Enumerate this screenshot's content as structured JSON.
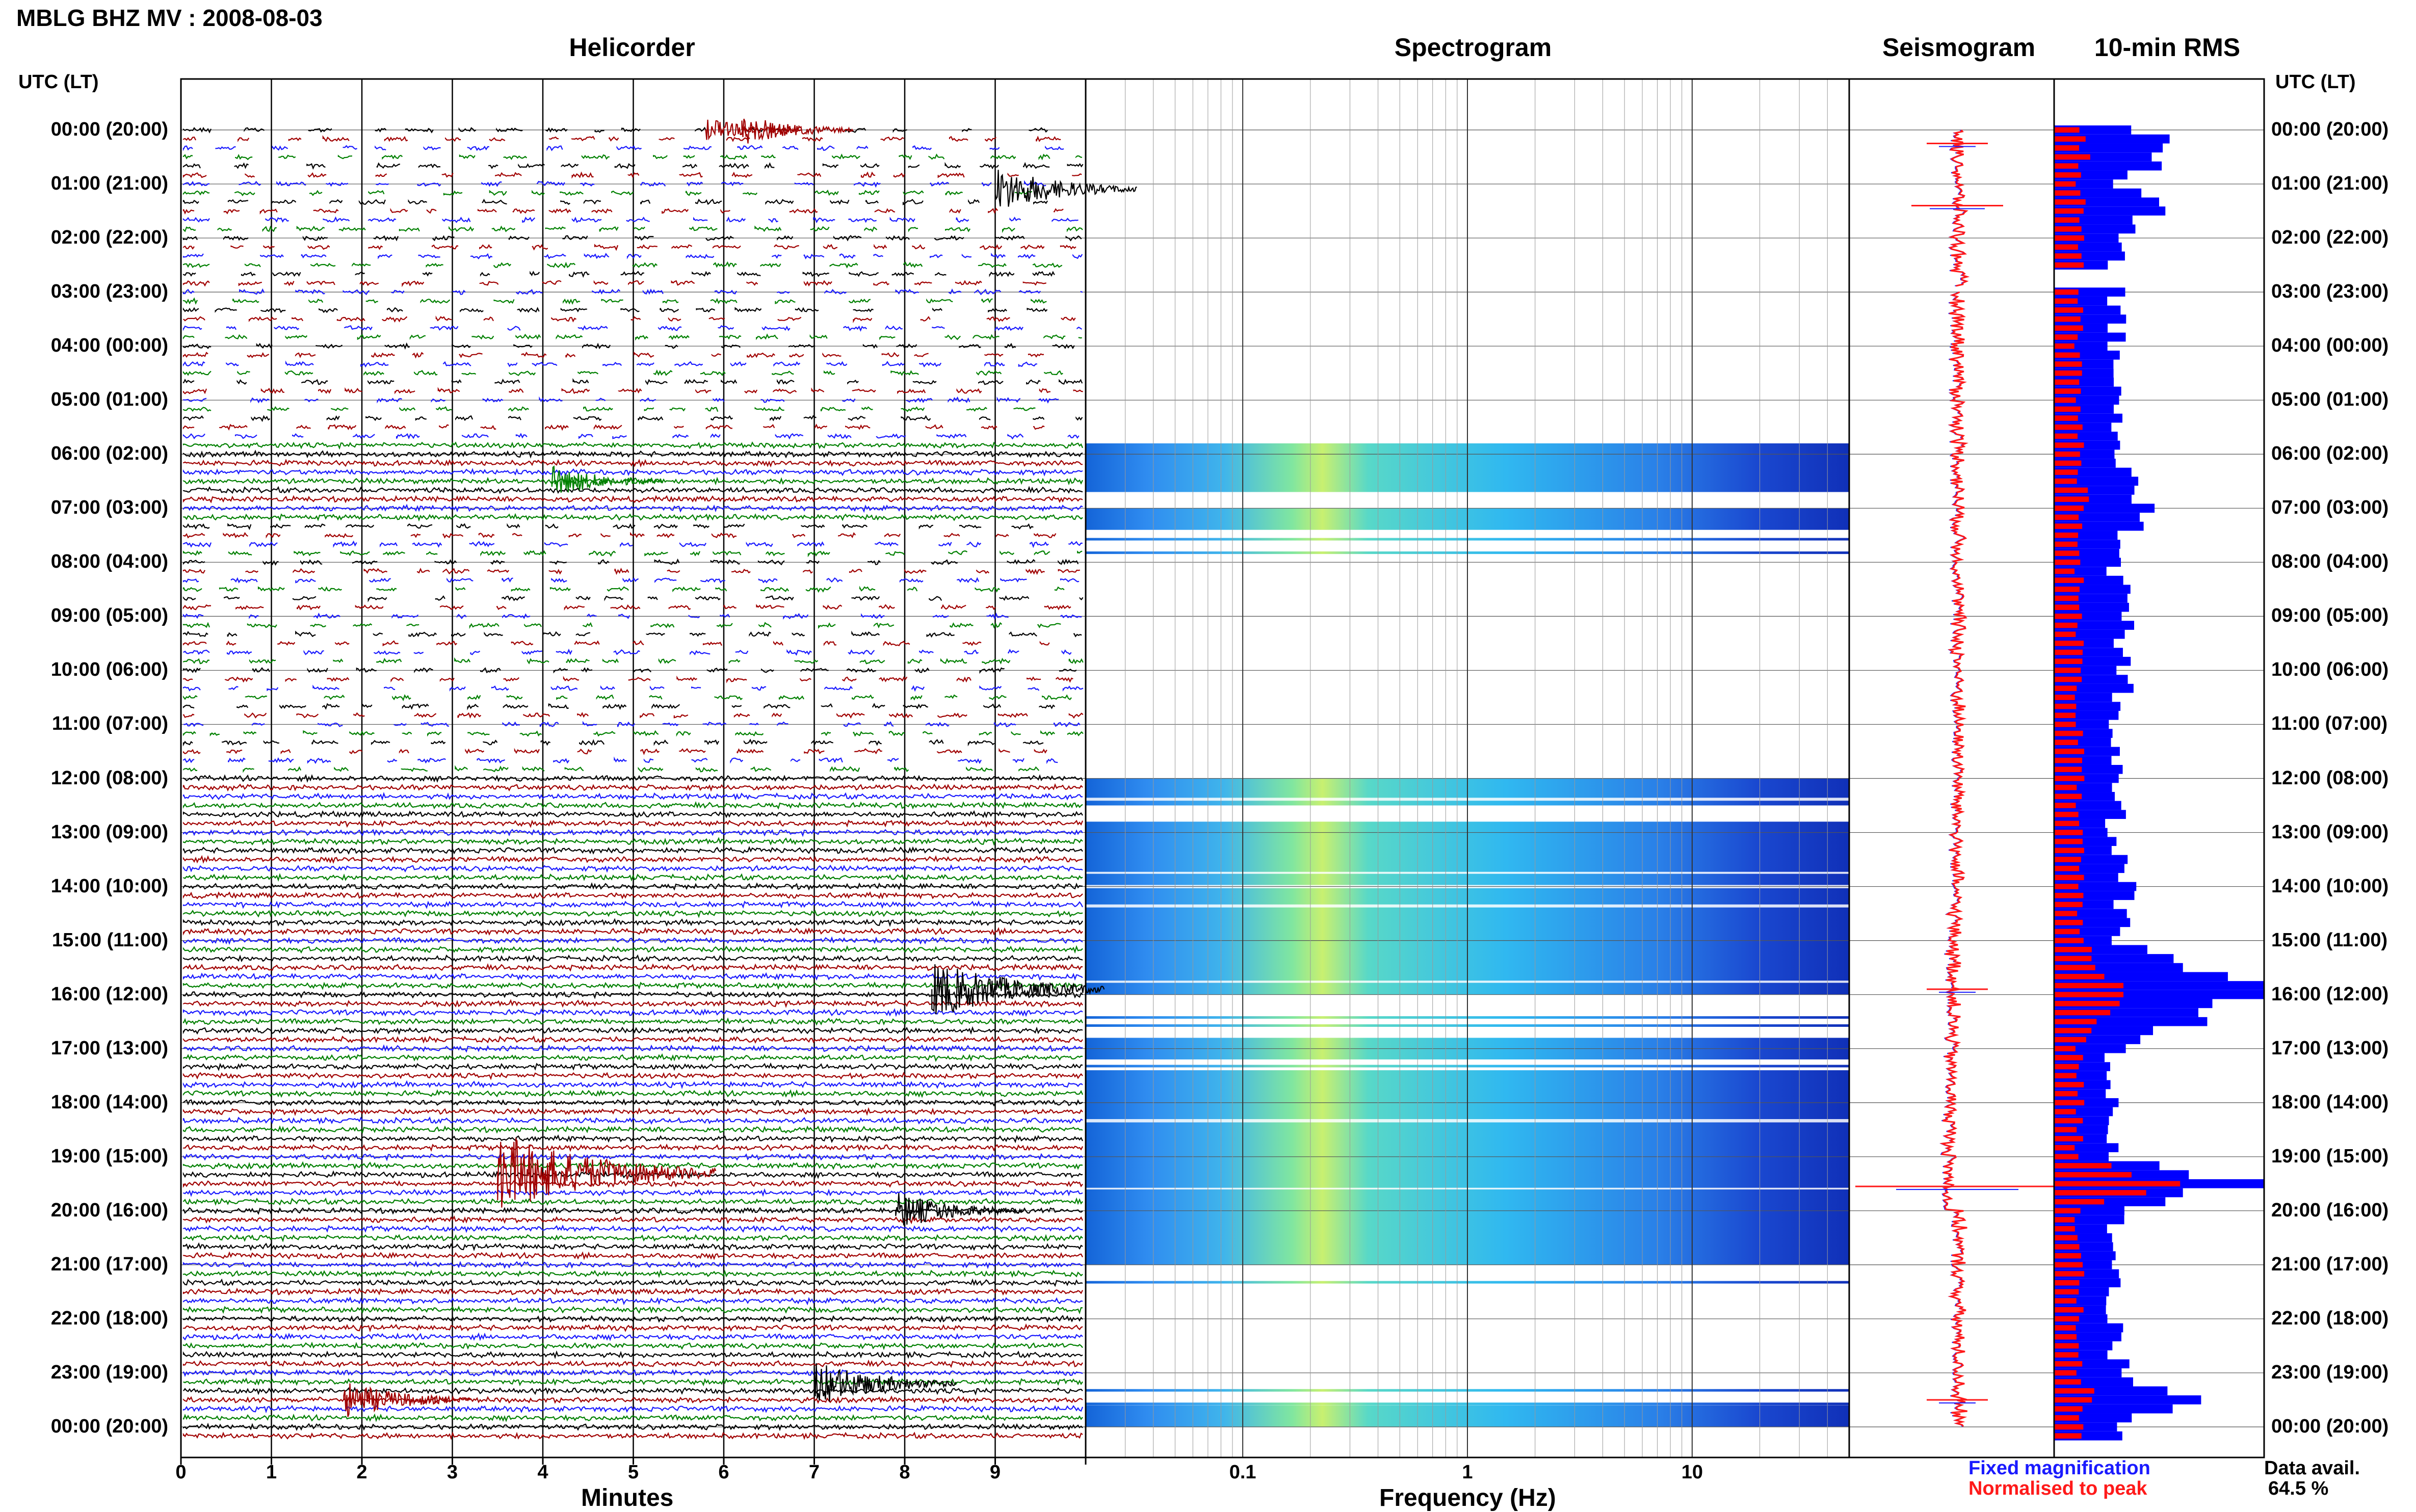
{
  "header": {
    "title": "MBLG BHZ MV : 2008-08-03",
    "utc_lt_label": "UTC (LT)"
  },
  "panels": {
    "helicorder": "Helicorder",
    "spectrogram": "Spectrogram",
    "seismogram": "Seismogram",
    "rms": "10-min RMS"
  },
  "axes": {
    "helicorder_xlabel": "Minutes",
    "helicorder_ticks": [
      "0",
      "1",
      "2",
      "3",
      "4",
      "5",
      "6",
      "7",
      "8",
      "9"
    ],
    "spectrogram_xlabel": "Frequency (Hz)",
    "spectrogram_ticks": [
      "0.1",
      "1",
      "10"
    ],
    "time_labels": [
      "00:00 (20:00)",
      "01:00 (21:00)",
      "02:00 (22:00)",
      "03:00 (23:00)",
      "04:00 (00:00)",
      "05:00 (01:00)",
      "06:00 (02:00)",
      "07:00 (03:00)",
      "08:00 (04:00)",
      "09:00 (05:00)",
      "10:00 (06:00)",
      "11:00 (07:00)",
      "12:00 (08:00)",
      "13:00 (09:00)",
      "14:00 (10:00)",
      "15:00 (11:00)",
      "16:00 (12:00)",
      "17:00 (13:00)",
      "18:00 (14:00)",
      "19:00 (15:00)",
      "20:00 (16:00)",
      "21:00 (17:00)",
      "22:00 (18:00)",
      "23:00 (19:00)",
      "00:00 (20:00)"
    ]
  },
  "legend": {
    "fixed": "Fixed magnification",
    "normalised": "Normalised to peak"
  },
  "availability": {
    "label": "Data avail.",
    "value": "64.5 %"
  },
  "colors": {
    "trace_cycle": [
      "#000000",
      "#a00000",
      "#1a1aff",
      "#008000"
    ],
    "rms_fixed": "#0000ff",
    "rms_normalised": "#ff0000"
  },
  "chart_data": {
    "type": "heatmap",
    "helicorder": {
      "x_range_minutes": [
        0,
        10
      ],
      "rows_per_hour": 6,
      "continuous_hours_utc": [
        [
          5.8,
          7.2
        ],
        [
          11.9,
          24.2
        ]
      ],
      "events": [
        {
          "utc_hour": 0.0,
          "minute": 6.2,
          "color": "#a00000",
          "amplitude": 0.3
        },
        {
          "utc_hour": 0.0,
          "minute": 5.8,
          "color": "#a00000",
          "amplitude": 0.2
        },
        {
          "utc_hour": 1.1,
          "minute": 9.0,
          "color": "#000000",
          "amplitude": 0.5
        },
        {
          "utc_hour": 6.5,
          "minute": 4.1,
          "color": "#008000",
          "amplitude": 0.3
        },
        {
          "utc_hour": 15.9,
          "minute": 8.3,
          "color": "#000000",
          "amplitude": 0.7
        },
        {
          "utc_hour": 19.3,
          "minute": 3.5,
          "color": "#a00000",
          "amplitude": 1.0
        },
        {
          "utc_hour": 20.0,
          "minute": 7.9,
          "color": "#000000",
          "amplitude": 0.4
        },
        {
          "utc_hour": 23.2,
          "minute": 7.0,
          "color": "#000000",
          "amplitude": 0.5
        },
        {
          "utc_hour": 23.5,
          "minute": 1.8,
          "color": "#a00000",
          "amplitude": 0.4
        }
      ]
    },
    "spectrogram": {
      "x_scale": "log",
      "x_range_hz": [
        0.02,
        50
      ],
      "active_bands_utc": [
        [
          5.8,
          6.7
        ],
        [
          7.0,
          7.4
        ],
        [
          12.0,
          12.5
        ],
        [
          12.8,
          15.8
        ],
        [
          15.3,
          16.0
        ],
        [
          16.8,
          17.2
        ],
        [
          17.4,
          21.0
        ],
        [
          23.6,
          24.0
        ]
      ],
      "dominant_frequency_hz": 0.25
    },
    "rms": {
      "hours_utc": [
        0,
        0.5,
        1,
        1.5,
        2,
        2.5,
        3,
        4,
        5,
        6,
        7,
        8,
        9,
        10,
        11,
        12,
        13,
        14,
        15,
        16,
        17,
        18,
        19,
        19.5,
        20,
        21,
        22,
        23,
        23.5,
        24
      ],
      "fixed": [
        0.35,
        0.55,
        0.3,
        0.5,
        0.3,
        0.3,
        0.3,
        0.3,
        0.3,
        0.3,
        0.45,
        0.3,
        0.35,
        0.35,
        0.3,
        0.3,
        0.3,
        0.35,
        0.3,
        1.0,
        0.3,
        0.3,
        0.3,
        1.0,
        0.3,
        0.3,
        0.28,
        0.32,
        0.7,
        0.3
      ],
      "normalised": [
        0.2,
        0.25,
        0.2,
        0.25,
        0.2,
        0.2,
        0.2,
        0.2,
        0.2,
        0.2,
        0.25,
        0.2,
        0.2,
        0.2,
        0.2,
        0.2,
        0.2,
        0.2,
        0.2,
        0.55,
        0.2,
        0.2,
        0.2,
        1.0,
        0.2,
        0.2,
        0.2,
        0.2,
        0.3,
        0.2
      ]
    }
  }
}
